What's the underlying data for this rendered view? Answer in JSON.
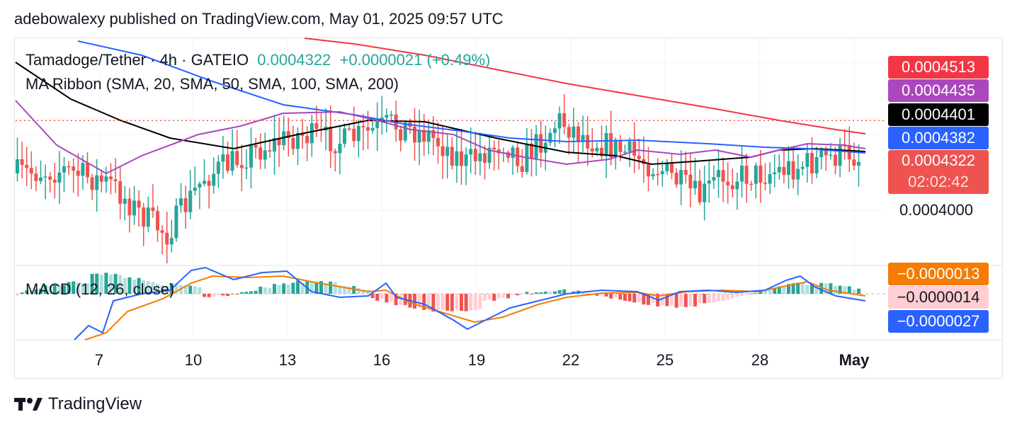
{
  "header": {
    "text": "adebowalexy published on TradingView.com, May 01, 2025 09:57 UTC"
  },
  "legend": {
    "symbol": "Tamadoge/Tether · 4h · GATEIO",
    "price": "0.0004322",
    "change": "+0.0000021 (+0.49%)",
    "ribbon": "MA Ribbon (SMA, 20, SMA, 50, SMA, 100, SMA, 200)",
    "macd": "MACD (12, 26, close)"
  },
  "tags": {
    "sma200": {
      "label": "0.0004513",
      "color": "#f23645"
    },
    "sma20": {
      "label": "0.0004435",
      "color": "#ab47bc"
    },
    "sma100": {
      "label": "0.0004401",
      "color": "#000000"
    },
    "sma50": {
      "label": "0.0004382",
      "color": "#2962ff"
    },
    "last": {
      "label": "0.0004322",
      "countdown": "02:02:42",
      "color": "#ef5350"
    },
    "signal": {
      "label": "−0.0000013",
      "color": "#f57c00"
    },
    "histogram": {
      "label": "−0.0000014",
      "color": "#ffcdd2"
    },
    "macd_line": {
      "label": "−0.0000027",
      "color": "#2962ff"
    }
  },
  "price_scale": {
    "label": "0.0004000"
  },
  "footer": {
    "logo": "TradingView"
  },
  "chart_data": {
    "type": "candlestick",
    "xaxis_ticks": [
      "7",
      "10",
      "13",
      "16",
      "19",
      "22",
      "25",
      "28",
      "May"
    ],
    "xaxis_bold": "May",
    "series": [
      {
        "name": "SMA 20",
        "color": "#ab47bc",
        "last": 0.0004435
      },
      {
        "name": "SMA 50",
        "color": "#2962ff",
        "last": 0.0004382
      },
      {
        "name": "SMA 100",
        "color": "#000000",
        "last": 0.0004401
      },
      {
        "name": "SMA 200",
        "color": "#f23645",
        "last": 0.0004513
      },
      {
        "name": "MACD",
        "color": "#2962ff",
        "last": -2.7e-06
      },
      {
        "name": "Signal",
        "color": "#f57c00",
        "last": -1.3e-06
      },
      {
        "name": "Histogram",
        "last": -1.4e-06
      }
    ],
    "last_price": 0.0004322,
    "colors": {
      "up": "#26a69a",
      "down": "#ef5350",
      "hist_up_light": "#b2dfdb",
      "hist_down_light": "#ffcdd2"
    }
  }
}
